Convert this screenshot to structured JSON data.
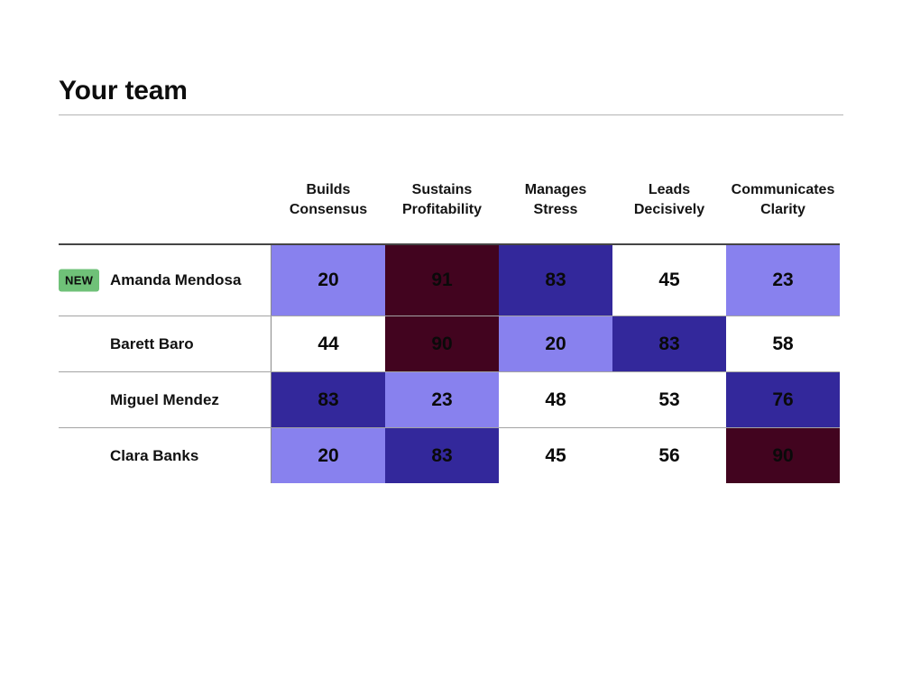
{
  "chart_data": {
    "type": "heatmap",
    "title": "Your team",
    "columns": [
      "Builds Consensus",
      "Sustains Profitability",
      "Manages Stress",
      "Leads Decisively",
      "Communicates Clarity"
    ],
    "rows": [
      "Amanda Mendosa",
      "Barett Baro",
      "Miguel Mendez",
      "Clara Banks"
    ],
    "values": [
      [
        20,
        91,
        83,
        45,
        23
      ],
      [
        44,
        90,
        20,
        83,
        58
      ],
      [
        83,
        23,
        48,
        53,
        76
      ],
      [
        20,
        83,
        45,
        56,
        90
      ]
    ],
    "legend": "none",
    "grid": "row-separators"
  },
  "table": {
    "badges": [
      {
        "row": 0,
        "label": "NEW"
      }
    ],
    "levels": [
      [
        "low",
        "max",
        "high",
        "mid",
        "low"
      ],
      [
        "mid",
        "max",
        "low",
        "high",
        "mid"
      ],
      [
        "high",
        "low",
        "mid",
        "mid",
        "high"
      ],
      [
        "low",
        "high",
        "mid",
        "mid",
        "max"
      ]
    ],
    "palette": {
      "low": "#8881ee",
      "mid": "#ffffff",
      "high": "#33289b",
      "max": "#42041f"
    },
    "badge_colors": {
      "bg": "#6fc178",
      "text": "#0d0d0d"
    }
  }
}
